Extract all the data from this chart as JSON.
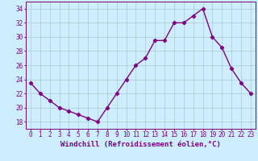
{
  "x": [
    0,
    1,
    2,
    3,
    4,
    5,
    6,
    7,
    8,
    9,
    10,
    11,
    12,
    13,
    14,
    15,
    16,
    17,
    18,
    19,
    20,
    21,
    22,
    23
  ],
  "y": [
    23.5,
    22,
    21,
    20,
    19.5,
    19,
    18.5,
    18,
    20,
    22,
    24,
    26,
    27,
    29.5,
    29.5,
    32,
    32,
    33,
    34,
    30,
    28.5,
    25.5,
    23.5,
    22
  ],
  "line_color": "#800080",
  "marker": "D",
  "marker_size": 2.2,
  "bg_color": "#cceeff",
  "grid_color": "#aacccc",
  "xlabel": "Windchill (Refroidissement éolien,°C)",
  "xlabel_fontsize": 6.5,
  "ylim": [
    17,
    35
  ],
  "yticks": [
    18,
    20,
    22,
    24,
    26,
    28,
    30,
    32,
    34
  ],
  "xticks": [
    0,
    1,
    2,
    3,
    4,
    5,
    6,
    7,
    8,
    9,
    10,
    11,
    12,
    13,
    14,
    15,
    16,
    17,
    18,
    19,
    20,
    21,
    22,
    23
  ],
  "tick_fontsize": 5.5,
  "line_width": 1.0
}
